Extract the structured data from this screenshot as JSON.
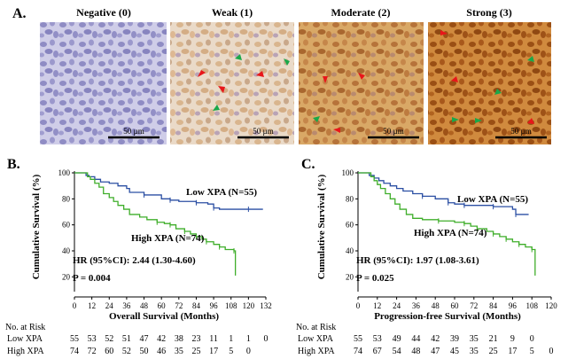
{
  "panelA": {
    "letter": "A.",
    "scale_label": "50 µm",
    "images": [
      {
        "title": "Negative (0)"
      },
      {
        "title": "Weak (1)"
      },
      {
        "title": "Moderate (2)"
      },
      {
        "title": "Strong (3)"
      }
    ],
    "colors": {
      "negative": "#c9c8e6",
      "weak": "#ead9c7",
      "moderate": "#d8a15f",
      "strong": "#c97b2f",
      "red_arrow": "#e8161a",
      "green_arrow": "#1aa84a"
    }
  },
  "chart_data": [
    {
      "type": "line",
      "panel": "B.",
      "xlabel": "Overall Survival (Months)",
      "ylabel": "Cumulative Survival (%)",
      "xlim": [
        0,
        132
      ],
      "ylim": [
        10,
        100
      ],
      "xticks": [
        0,
        12,
        24,
        36,
        48,
        60,
        72,
        84,
        96,
        108,
        120,
        132
      ],
      "yticks": [
        20,
        40,
        60,
        80,
        100
      ],
      "series": [
        {
          "name": "Low XPA (N=55)",
          "color": "#2b4fa3",
          "x": [
            0,
            7,
            8,
            10,
            14,
            18,
            24,
            30,
            36,
            38,
            48,
            60,
            66,
            72,
            84,
            92,
            96,
            100,
            120,
            130
          ],
          "y": [
            100,
            100,
            98,
            97,
            95,
            93,
            92,
            90,
            88,
            85,
            83,
            80,
            79,
            78,
            77,
            76,
            73,
            72,
            72,
            72
          ]
        },
        {
          "name": "High XPA (N=74)",
          "color": "#3fae2a",
          "x": [
            0,
            7,
            9,
            11,
            14,
            17,
            20,
            24,
            27,
            30,
            34,
            38,
            45,
            50,
            57,
            62,
            66,
            70,
            76,
            80,
            84,
            88,
            91,
            96,
            100,
            104,
            110,
            111
          ],
          "y": [
            100,
            100,
            97,
            95,
            92,
            89,
            84,
            81,
            78,
            75,
            72,
            68,
            66,
            64,
            62,
            61,
            60,
            57,
            55,
            53,
            51,
            49,
            47,
            45,
            43,
            41,
            40,
            21
          ]
        }
      ],
      "annotations": [
        "Low XPA (N=55)",
        "High XPA (N=74)",
        "HR (95%CI): 2.44 (1.30-4.60)",
        "P = 0.004"
      ],
      "risk_table": {
        "title": "No. at Risk",
        "rows": [
          {
            "label": "Low XPA",
            "values": [
              "55",
              "53",
              "52",
              "51",
              "47",
              "42",
              "38",
              "23",
              "11",
              "1",
              "1",
              "0"
            ]
          },
          {
            "label": "High XPA",
            "values": [
              "74",
              "72",
              "60",
              "52",
              "50",
              "46",
              "35",
              "25",
              "17",
              "5",
              "0"
            ]
          }
        ]
      }
    },
    {
      "type": "line",
      "panel": "C.",
      "xlabel": "Progression-free Survival (Months)",
      "ylabel": "Cumulative Survival (%)",
      "xlim": [
        0,
        120
      ],
      "ylim": [
        10,
        100
      ],
      "xticks": [
        0,
        12,
        24,
        36,
        48,
        60,
        72,
        84,
        96,
        108,
        120
      ],
      "yticks": [
        20,
        40,
        60,
        80,
        100
      ],
      "series": [
        {
          "name": "Low XPA (N=55)",
          "color": "#2b4fa3",
          "x": [
            0,
            6,
            7,
            10,
            13,
            16,
            20,
            24,
            28,
            34,
            40,
            48,
            56,
            60,
            66,
            72,
            84,
            96,
            98,
            106
          ],
          "y": [
            100,
            100,
            98,
            96,
            94,
            92,
            90,
            88,
            86,
            84,
            82,
            80,
            77,
            76,
            75,
            75,
            74,
            72,
            68,
            68
          ]
        },
        {
          "name": "High XPA (N=74)",
          "color": "#3fae2a",
          "x": [
            0,
            6,
            8,
            10,
            12,
            14,
            17,
            20,
            23,
            26,
            30,
            34,
            40,
            50,
            60,
            66,
            70,
            74,
            80,
            84,
            88,
            92,
            96,
            100,
            104,
            108,
            110
          ],
          "y": [
            100,
            100,
            97,
            94,
            91,
            88,
            84,
            80,
            76,
            72,
            68,
            65,
            64,
            63,
            62,
            61,
            59,
            57,
            55,
            53,
            51,
            49,
            47,
            45,
            43,
            41,
            21
          ]
        }
      ],
      "annotations": [
        "Low XPA (N=55)",
        "High XPA (N=74)",
        "HR (95%CI): 1.97 (1.08-3.61)",
        "P = 0.025"
      ],
      "risk_table": {
        "title": "No. at Risk",
        "rows": [
          {
            "label": "Low XPA",
            "values": [
              "55",
              "53",
              "49",
              "44",
              "42",
              "39",
              "35",
              "21",
              "9",
              "0"
            ]
          },
          {
            "label": "High XPA",
            "values": [
              "74",
              "67",
              "54",
              "48",
              "47",
              "45",
              "35",
              "25",
              "17",
              "5",
              "0"
            ]
          }
        ]
      }
    }
  ]
}
